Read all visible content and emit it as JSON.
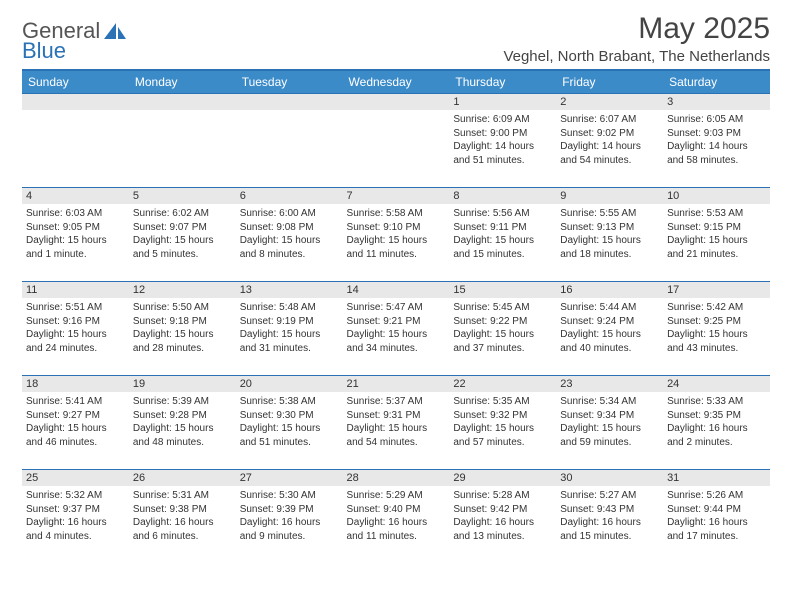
{
  "brand": {
    "part1": "General",
    "part2": "Blue"
  },
  "title": "May 2025",
  "location": "Veghel, North Brabant, The Netherlands",
  "colors": {
    "header_bg": "#3c8bc9",
    "rule": "#2a72b5",
    "daynum_bg": "#e8e8e8",
    "text": "#333333",
    "background": "#ffffff"
  },
  "fonts": {
    "body_pt": 10,
    "title_pt": 30,
    "location_pt": 15,
    "header_pt": 12
  },
  "days_of_week": [
    "Sunday",
    "Monday",
    "Tuesday",
    "Wednesday",
    "Thursday",
    "Friday",
    "Saturday"
  ],
  "weeks": [
    [
      null,
      null,
      null,
      null,
      {
        "n": "1",
        "sunrise": "6:09 AM",
        "sunset": "9:00 PM",
        "daylight": "14 hours and 51 minutes."
      },
      {
        "n": "2",
        "sunrise": "6:07 AM",
        "sunset": "9:02 PM",
        "daylight": "14 hours and 54 minutes."
      },
      {
        "n": "3",
        "sunrise": "6:05 AM",
        "sunset": "9:03 PM",
        "daylight": "14 hours and 58 minutes."
      }
    ],
    [
      {
        "n": "4",
        "sunrise": "6:03 AM",
        "sunset": "9:05 PM",
        "daylight": "15 hours and 1 minute."
      },
      {
        "n": "5",
        "sunrise": "6:02 AM",
        "sunset": "9:07 PM",
        "daylight": "15 hours and 5 minutes."
      },
      {
        "n": "6",
        "sunrise": "6:00 AM",
        "sunset": "9:08 PM",
        "daylight": "15 hours and 8 minutes."
      },
      {
        "n": "7",
        "sunrise": "5:58 AM",
        "sunset": "9:10 PM",
        "daylight": "15 hours and 11 minutes."
      },
      {
        "n": "8",
        "sunrise": "5:56 AM",
        "sunset": "9:11 PM",
        "daylight": "15 hours and 15 minutes."
      },
      {
        "n": "9",
        "sunrise": "5:55 AM",
        "sunset": "9:13 PM",
        "daylight": "15 hours and 18 minutes."
      },
      {
        "n": "10",
        "sunrise": "5:53 AM",
        "sunset": "9:15 PM",
        "daylight": "15 hours and 21 minutes."
      }
    ],
    [
      {
        "n": "11",
        "sunrise": "5:51 AM",
        "sunset": "9:16 PM",
        "daylight": "15 hours and 24 minutes."
      },
      {
        "n": "12",
        "sunrise": "5:50 AM",
        "sunset": "9:18 PM",
        "daylight": "15 hours and 28 minutes."
      },
      {
        "n": "13",
        "sunrise": "5:48 AM",
        "sunset": "9:19 PM",
        "daylight": "15 hours and 31 minutes."
      },
      {
        "n": "14",
        "sunrise": "5:47 AM",
        "sunset": "9:21 PM",
        "daylight": "15 hours and 34 minutes."
      },
      {
        "n": "15",
        "sunrise": "5:45 AM",
        "sunset": "9:22 PM",
        "daylight": "15 hours and 37 minutes."
      },
      {
        "n": "16",
        "sunrise": "5:44 AM",
        "sunset": "9:24 PM",
        "daylight": "15 hours and 40 minutes."
      },
      {
        "n": "17",
        "sunrise": "5:42 AM",
        "sunset": "9:25 PM",
        "daylight": "15 hours and 43 minutes."
      }
    ],
    [
      {
        "n": "18",
        "sunrise": "5:41 AM",
        "sunset": "9:27 PM",
        "daylight": "15 hours and 46 minutes."
      },
      {
        "n": "19",
        "sunrise": "5:39 AM",
        "sunset": "9:28 PM",
        "daylight": "15 hours and 48 minutes."
      },
      {
        "n": "20",
        "sunrise": "5:38 AM",
        "sunset": "9:30 PM",
        "daylight": "15 hours and 51 minutes."
      },
      {
        "n": "21",
        "sunrise": "5:37 AM",
        "sunset": "9:31 PM",
        "daylight": "15 hours and 54 minutes."
      },
      {
        "n": "22",
        "sunrise": "5:35 AM",
        "sunset": "9:32 PM",
        "daylight": "15 hours and 57 minutes."
      },
      {
        "n": "23",
        "sunrise": "5:34 AM",
        "sunset": "9:34 PM",
        "daylight": "15 hours and 59 minutes."
      },
      {
        "n": "24",
        "sunrise": "5:33 AM",
        "sunset": "9:35 PM",
        "daylight": "16 hours and 2 minutes."
      }
    ],
    [
      {
        "n": "25",
        "sunrise": "5:32 AM",
        "sunset": "9:37 PM",
        "daylight": "16 hours and 4 minutes."
      },
      {
        "n": "26",
        "sunrise": "5:31 AM",
        "sunset": "9:38 PM",
        "daylight": "16 hours and 6 minutes."
      },
      {
        "n": "27",
        "sunrise": "5:30 AM",
        "sunset": "9:39 PM",
        "daylight": "16 hours and 9 minutes."
      },
      {
        "n": "28",
        "sunrise": "5:29 AM",
        "sunset": "9:40 PM",
        "daylight": "16 hours and 11 minutes."
      },
      {
        "n": "29",
        "sunrise": "5:28 AM",
        "sunset": "9:42 PM",
        "daylight": "16 hours and 13 minutes."
      },
      {
        "n": "30",
        "sunrise": "5:27 AM",
        "sunset": "9:43 PM",
        "daylight": "16 hours and 15 minutes."
      },
      {
        "n": "31",
        "sunrise": "5:26 AM",
        "sunset": "9:44 PM",
        "daylight": "16 hours and 17 minutes."
      }
    ]
  ],
  "labels": {
    "sunrise": "Sunrise:",
    "sunset": "Sunset:",
    "daylight": "Daylight:"
  }
}
